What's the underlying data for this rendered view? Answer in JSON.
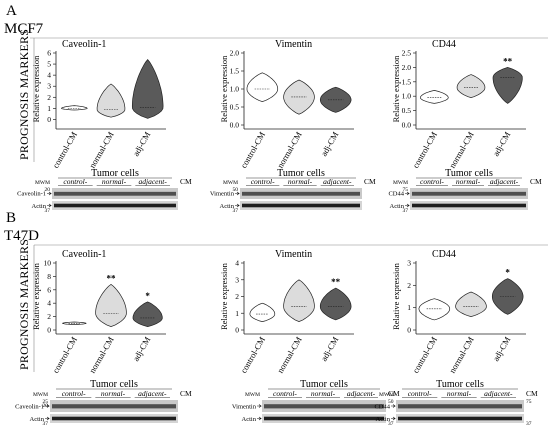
{
  "panels": [
    {
      "letter": "A",
      "cell_line": "MCF7",
      "section_label": "PROGNOSIS MARKERS",
      "tumor_cells_label": "Tumor cells",
      "blots": [
        {
          "label": "Caveolin-1",
          "actin": "Actin",
          "mwm": "MWM",
          "groups": [
            "control-",
            "normal-",
            "adjacent-"
          ],
          "cm": "CM",
          "markers": [
            "20",
            "37"
          ]
        },
        {
          "label": "Vimentin",
          "actin": "Actin",
          "mwm": "MWM",
          "groups": [
            "control-",
            "normal-",
            "adjacent-"
          ],
          "cm": "CM",
          "markers": [
            "50",
            "37"
          ]
        },
        {
          "label": "CD44",
          "actin": "Actin",
          "mwm": "MWM",
          "groups": [
            "control-",
            "normal-",
            "adjacent-"
          ],
          "cm": "CM",
          "markers": [
            "75",
            "37"
          ]
        }
      ]
    },
    {
      "letter": "B",
      "cell_line": "T47D",
      "section_label": "PROGNOSIS MARKERS",
      "tumor_cells_label": "Tumor cells",
      "blots": [
        {
          "label": "Caveolin-1",
          "actin": "Actin",
          "mwm": "MWM",
          "groups": [
            "control-",
            "normal-",
            "adjacent-"
          ],
          "cm": "CM",
          "markers": [
            "25",
            "20",
            "37"
          ]
        },
        {
          "label": "Vimentin",
          "actin": "Actin",
          "mwm": "MWM",
          "groups": [
            "control-",
            "normal-",
            "adjacent-"
          ],
          "cm": "CM",
          "markers": [
            "50",
            "37"
          ]
        },
        {
          "label": "CD44",
          "actin": "Actin",
          "mwm": "MWM",
          "groups": [
            "control-",
            "normal-",
            "adjacent-"
          ],
          "cm": "CM",
          "markers": [
            "75",
            "37"
          ]
        }
      ]
    }
  ],
  "chart_data": [
    {
      "type": "violin",
      "panel": "A",
      "title": "Caveolin-1",
      "ylabel": "Relative expression",
      "categories": [
        "control-CM",
        "normal-CM",
        "adj-CM"
      ],
      "yticks": [
        0,
        1,
        2,
        3,
        4,
        5,
        6
      ],
      "ylim": [
        -0.5,
        6
      ],
      "violins": [
        {
          "min": 0.85,
          "max": 1.25,
          "median": 1.0,
          "width": 0.35
        },
        {
          "min": 0.2,
          "max": 3.2,
          "median": 0.9,
          "width": 0.38
        },
        {
          "min": 0.1,
          "max": 5.4,
          "median": 1.1,
          "width": 0.42
        }
      ],
      "fills": [
        "#ffffff",
        "#dcdcdc",
        "#5a5a5a"
      ],
      "significance": [
        "",
        "",
        ""
      ]
    },
    {
      "type": "violin",
      "panel": "A",
      "title": "Vimentin",
      "ylabel": "Relative expression",
      "categories": [
        "control-CM",
        "normal-CM",
        "adj-CM"
      ],
      "yticks": [
        0.0,
        0.5,
        1.0,
        1.5,
        2.0
      ],
      "ylim": [
        0.0,
        2.0
      ],
      "violins": [
        {
          "min": 0.65,
          "max": 1.45,
          "median": 1.0,
          "width": 0.42
        },
        {
          "min": 0.3,
          "max": 1.25,
          "median": 0.78,
          "width": 0.42
        },
        {
          "min": 0.35,
          "max": 1.05,
          "median": 0.7,
          "width": 0.42
        }
      ],
      "fills": [
        "#ffffff",
        "#dcdcdc",
        "#5a5a5a"
      ],
      "significance": [
        "",
        "",
        ""
      ]
    },
    {
      "type": "violin",
      "panel": "A",
      "title": "CD44",
      "ylabel": "Relative expression",
      "categories": [
        "control-CM",
        "normal-CM",
        "adj-CM"
      ],
      "yticks": [
        0.0,
        0.5,
        1.0,
        1.5,
        2.0,
        2.5
      ],
      "ylim": [
        0.0,
        2.5
      ],
      "violins": [
        {
          "min": 0.75,
          "max": 1.2,
          "median": 0.95,
          "width": 0.38
        },
        {
          "min": 0.95,
          "max": 1.75,
          "median": 1.3,
          "width": 0.38
        },
        {
          "min": 0.75,
          "max": 2.0,
          "median": 1.65,
          "width": 0.4
        }
      ],
      "fills": [
        "#ffffff",
        "#dcdcdc",
        "#5a5a5a"
      ],
      "significance": [
        "",
        "",
        "**"
      ]
    },
    {
      "type": "violin",
      "panel": "B",
      "title": "Caveolin-1",
      "ylabel": "Relative expression",
      "categories": [
        "control-CM",
        "normal-CM",
        "adj-CM"
      ],
      "yticks": [
        0,
        2,
        4,
        6,
        8,
        10
      ],
      "ylim": [
        0,
        10
      ],
      "violins": [
        {
          "min": 0.8,
          "max": 1.2,
          "median": 1.0,
          "width": 0.32
        },
        {
          "min": 0.5,
          "max": 6.8,
          "median": 2.5,
          "width": 0.42
        },
        {
          "min": 0.5,
          "max": 4.2,
          "median": 1.8,
          "width": 0.4
        }
      ],
      "fills": [
        "#ffffff",
        "#dcdcdc",
        "#5a5a5a"
      ],
      "significance": [
        "",
        "**",
        "*"
      ]
    },
    {
      "type": "violin",
      "panel": "B",
      "title": "Vimentin",
      "ylabel": "Relative expression",
      "categories": [
        "control-CM",
        "normal-CM",
        "adj-CM"
      ],
      "yticks": [
        0,
        1,
        2,
        3,
        4
      ],
      "ylim": [
        0,
        4
      ],
      "violins": [
        {
          "min": 0.5,
          "max": 1.6,
          "median": 0.95,
          "width": 0.34
        },
        {
          "min": 0.5,
          "max": 3.0,
          "median": 1.4,
          "width": 0.42
        },
        {
          "min": 0.6,
          "max": 2.5,
          "median": 1.4,
          "width": 0.42
        }
      ],
      "fills": [
        "#ffffff",
        "#dcdcdc",
        "#5a5a5a"
      ],
      "significance": [
        "",
        "",
        "**"
      ]
    },
    {
      "type": "violin",
      "panel": "B",
      "title": "CD44",
      "ylabel": "Relative expression",
      "categories": [
        "control-CM",
        "normal-CM",
        "adj-CM"
      ],
      "yticks": [
        0,
        1,
        2,
        3
      ],
      "ylim": [
        0,
        3
      ],
      "violins": [
        {
          "min": 0.45,
          "max": 1.4,
          "median": 0.95,
          "width": 0.42
        },
        {
          "min": 0.6,
          "max": 1.7,
          "median": 1.05,
          "width": 0.42
        },
        {
          "min": 0.7,
          "max": 2.3,
          "median": 1.5,
          "width": 0.42
        }
      ],
      "fills": [
        "#ffffff",
        "#dcdcdc",
        "#5a5a5a"
      ],
      "significance": [
        "",
        "",
        "*"
      ]
    }
  ]
}
